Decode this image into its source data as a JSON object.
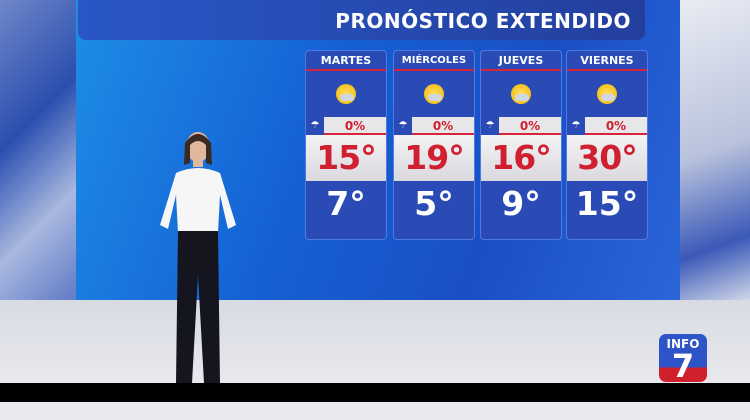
{
  "title": "PRONÓSTICO EXTENDIDO",
  "forecast": [
    {
      "day": "MARTES",
      "icon": "partly-cloudy-sun-icon",
      "rain": "0%",
      "high": "15°",
      "low": "7°"
    },
    {
      "day": "MIÉRCOLES",
      "icon": "sun-cloud-icon",
      "rain": "0%",
      "high": "19°",
      "low": "5°"
    },
    {
      "day": "JUEVES",
      "icon": "partly-cloudy-sun-icon",
      "rain": "0%",
      "high": "16°",
      "low": "9°"
    },
    {
      "day": "VIERNES",
      "icon": "sun-cloud-icon",
      "rain": "0%",
      "high": "30°",
      "low": "15°"
    }
  ],
  "logo": {
    "text": "INFO",
    "number": "7"
  },
  "colors": {
    "panel": "#2a4bb5",
    "high_text": "#d01f2f",
    "accent_red": "#d8243a"
  }
}
